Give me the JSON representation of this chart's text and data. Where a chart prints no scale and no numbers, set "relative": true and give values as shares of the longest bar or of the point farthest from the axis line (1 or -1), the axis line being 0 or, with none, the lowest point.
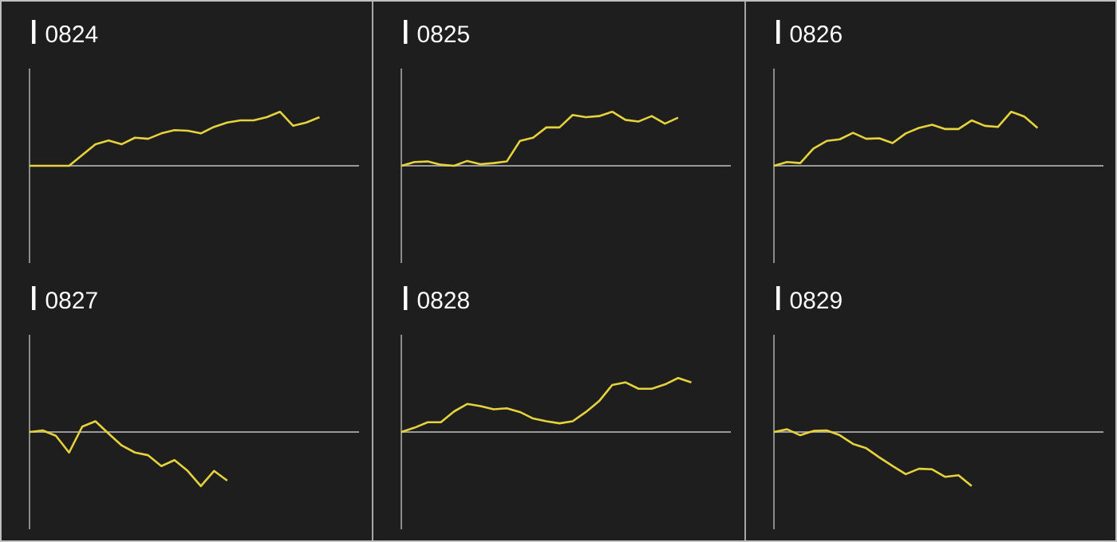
{
  "chart_data": [
    {
      "type": "line",
      "title": "0824",
      "relative": true,
      "color": "#e6d23c",
      "categories": [
        null,
        null,
        null,
        null,
        null,
        null,
        null,
        null,
        null,
        null,
        null,
        null,
        null,
        null,
        null,
        null,
        null,
        null,
        null,
        null,
        null,
        null,
        null,
        null,
        null,
        null
      ],
      "values": [
        0,
        0,
        0,
        0,
        0.2,
        0.4,
        0.47,
        0.4,
        0.52,
        0.5,
        0.6,
        0.66,
        0.65,
        0.6,
        0.72,
        0.8,
        0.84,
        0.84,
        0.9,
        1,
        0.74,
        0.8,
        0.9,
        null,
        null,
        null
      ]
    },
    {
      "type": "line",
      "title": "0825",
      "relative": true,
      "color": "#e6d23c",
      "categories": [
        null,
        null,
        null,
        null,
        null,
        null,
        null,
        null,
        null,
        null,
        null,
        null,
        null,
        null,
        null,
        null,
        null,
        null,
        null,
        null,
        null,
        null,
        null,
        null,
        null,
        null
      ],
      "values": [
        0,
        0.07,
        0.08,
        0.02,
        0,
        0.09,
        0.03,
        0.05,
        0.08,
        0.46,
        0.52,
        0.71,
        0.71,
        0.94,
        0.9,
        0.92,
        1,
        0.85,
        0.82,
        0.92,
        0.78,
        0.89,
        null,
        null,
        null,
        null
      ]
    },
    {
      "type": "line",
      "title": "0826",
      "relative": true,
      "color": "#e6d23c",
      "categories": [
        null,
        null,
        null,
        null,
        null,
        null,
        null,
        null,
        null,
        null,
        null,
        null,
        null,
        null,
        null,
        null,
        null,
        null,
        null,
        null,
        null,
        null,
        null,
        null,
        null,
        null
      ],
      "values": [
        0,
        0.07,
        0.05,
        0.32,
        0.46,
        0.49,
        0.61,
        0.5,
        0.51,
        0.42,
        0.6,
        0.7,
        0.76,
        0.68,
        0.68,
        0.84,
        0.74,
        0.72,
        1,
        0.91,
        0.7,
        null,
        null,
        null,
        null,
        null
      ]
    },
    {
      "type": "line",
      "title": "0827",
      "relative": true,
      "color": "#e6d23c",
      "categories": [
        null,
        null,
        null,
        null,
        null,
        null,
        null,
        null,
        null,
        null,
        null,
        null,
        null,
        null,
        null,
        null,
        null,
        null,
        null,
        null,
        null,
        null,
        null,
        null,
        null,
        null
      ],
      "values": [
        0,
        0.03,
        -0.07,
        -0.38,
        0.1,
        0.2,
        -0.03,
        -0.25,
        -0.38,
        -0.43,
        -0.63,
        -0.52,
        -0.72,
        -1,
        -0.72,
        -0.9,
        null,
        null,
        null,
        null,
        null,
        null,
        null,
        null,
        null,
        null
      ]
    },
    {
      "type": "line",
      "title": "0828",
      "relative": true,
      "color": "#e6d23c",
      "categories": [
        null,
        null,
        null,
        null,
        null,
        null,
        null,
        null,
        null,
        null,
        null,
        null,
        null,
        null,
        null,
        null,
        null,
        null,
        null,
        null,
        null,
        null,
        null,
        null,
        null,
        null
      ],
      "values": [
        0,
        0.08,
        0.18,
        0.18,
        0.38,
        0.52,
        0.48,
        0.42,
        0.44,
        0.37,
        0.25,
        0.2,
        0.16,
        0.2,
        0.37,
        0.57,
        0.87,
        0.92,
        0.8,
        0.8,
        0.88,
        1,
        0.92,
        null,
        null,
        null
      ]
    },
    {
      "type": "line",
      "title": "0829",
      "relative": true,
      "color": "#e6d23c",
      "categories": [
        null,
        null,
        null,
        null,
        null,
        null,
        null,
        null,
        null,
        null,
        null,
        null,
        null,
        null,
        null,
        null,
        null,
        null,
        null,
        null,
        null,
        null,
        null,
        null,
        null,
        null
      ],
      "values": [
        0,
        0.05,
        -0.06,
        0.02,
        0.03,
        -0.06,
        -0.22,
        -0.3,
        -0.47,
        -0.63,
        -0.78,
        -0.68,
        -0.69,
        -0.83,
        -0.8,
        -1,
        null,
        null,
        null,
        null,
        null,
        null,
        null,
        null,
        null,
        null
      ]
    }
  ]
}
